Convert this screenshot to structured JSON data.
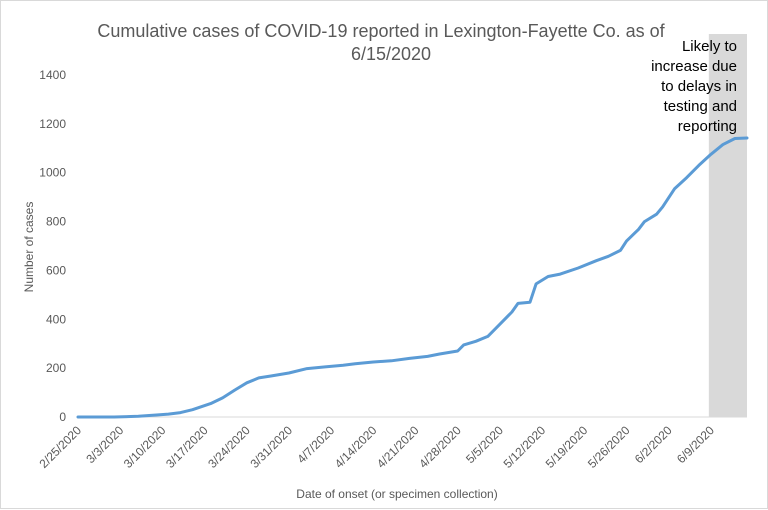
{
  "chart_data": {
    "type": "line",
    "title_line1": "Cumulative cases of COVID-19 reported in Lexington-Fayette Co.  as of",
    "title_line2": "6/15/2020",
    "xlabel": "Date of onset (or specimen collection)",
    "ylabel": "Number of cases",
    "ylim": [
      0,
      1400
    ],
    "yticks": [
      "0",
      "200",
      "400",
      "600",
      "800",
      "1000",
      "1200",
      "1400"
    ],
    "xticks": [
      "2/25/2020",
      "3/3/2020",
      "3/10/2020",
      "3/17/2020",
      "3/24/2020",
      "3/31/2020",
      "4/7/2020",
      "4/14/2020",
      "4/21/2020",
      "4/28/2020",
      "5/5/2020",
      "5/12/2020",
      "5/19/2020",
      "5/26/2020",
      "6/2/2020",
      "6/9/2020"
    ],
    "x_start": "2/25/2020",
    "x_end": "6/15/2020",
    "grid": false,
    "line_color": "#5b9bd5",
    "shade_color": "#d9d9d9",
    "shaded_from": "6/9/2020",
    "annotation": [
      "Likely to",
      "increase due",
      "to delays in",
      "testing and",
      "reporting"
    ],
    "series": [
      {
        "x": [
          "2/25/2020",
          "3/2/2020",
          "3/6/2020",
          "3/9/2020",
          "3/11/2020",
          "3/13/2020",
          "3/15/2020",
          "3/18/2020",
          "3/20/2020",
          "3/22/2020",
          "3/24/2020",
          "3/26/2020",
          "3/28/2020",
          "3/31/2020",
          "4/3/2020",
          "4/6/2020",
          "4/9/2020",
          "4/11/2020",
          "4/14/2020",
          "4/17/2020",
          "4/20/2020",
          "4/23/2020",
          "4/25/2020",
          "4/28/2020",
          "4/29/2020",
          "5/1/2020",
          "5/3/2020",
          "5/5/2020",
          "5/7/2020",
          "5/8/2020",
          "5/10/2020",
          "5/11/2020",
          "5/13/2020",
          "5/15/2020",
          "5/18/2020",
          "5/21/2020",
          "5/23/2020",
          "5/25/2020",
          "5/26/2020",
          "5/28/2020",
          "5/29/2020",
          "5/31/2020",
          "6/1/2020",
          "6/3/2020",
          "6/5/2020",
          "6/7/2020",
          "6/9/2020",
          "6/11/2020",
          "6/13/2020",
          "6/15/2020"
        ],
        "values": [
          0,
          0,
          3,
          8,
          12,
          18,
          30,
          55,
          78,
          110,
          140,
          160,
          168,
          180,
          198,
          205,
          212,
          218,
          225,
          230,
          240,
          248,
          258,
          270,
          295,
          310,
          330,
          380,
          430,
          465,
          470,
          545,
          575,
          585,
          610,
          640,
          658,
          682,
          720,
          768,
          800,
          830,
          860,
          935,
          980,
          1030,
          1075,
          1115,
          1140,
          1142
        ]
      }
    ]
  }
}
